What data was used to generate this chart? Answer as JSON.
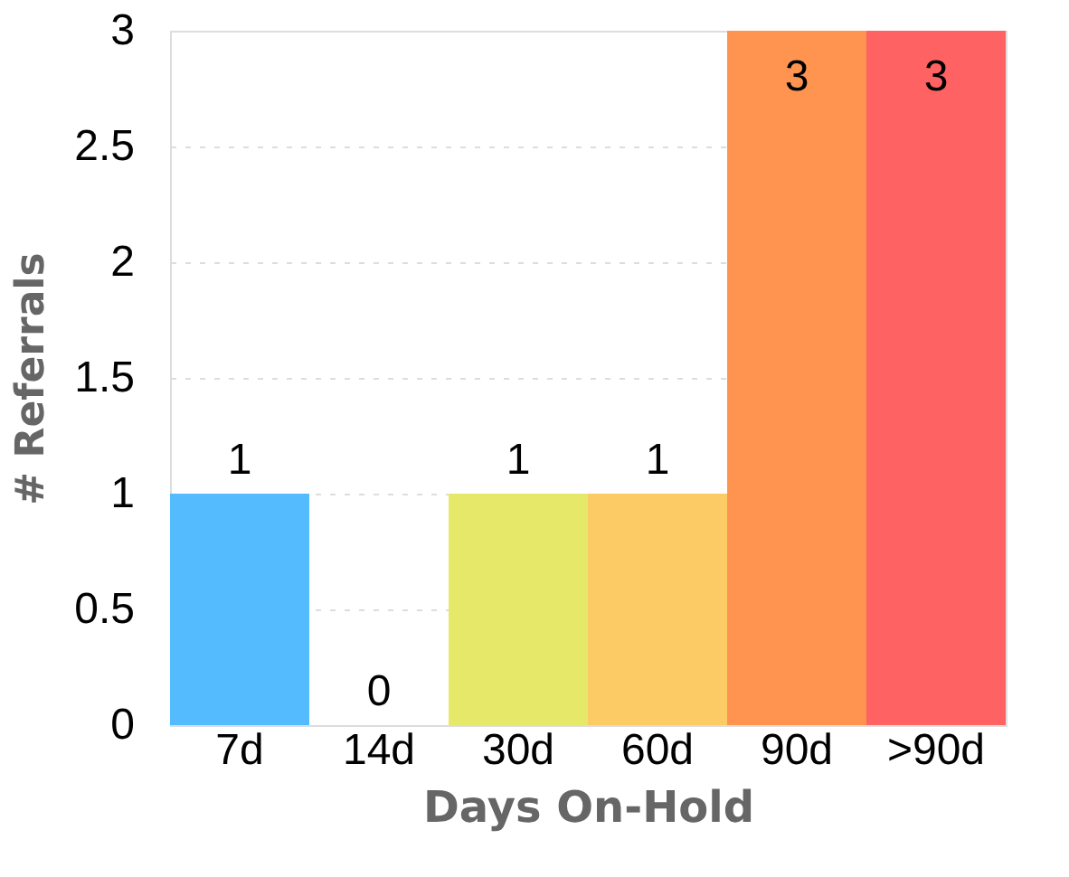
{
  "chart_data": {
    "type": "bar",
    "xlabel": "Days On-Hold",
    "ylabel": "# Referrals",
    "categories": [
      "7d",
      "14d",
      "30d",
      "60d",
      "90d",
      ">90d"
    ],
    "values": [
      1,
      0,
      1,
      1,
      3,
      3
    ],
    "colors": [
      "#55bbff",
      "#8ecbf5",
      "#e6e86a",
      "#fccb66",
      "#ff9450",
      "#ff6262"
    ],
    "ylim": [
      0,
      3
    ],
    "yticks": [
      0,
      0.5,
      1,
      1.5,
      2,
      2.5,
      3
    ],
    "grid": "y",
    "data_labels": true
  }
}
